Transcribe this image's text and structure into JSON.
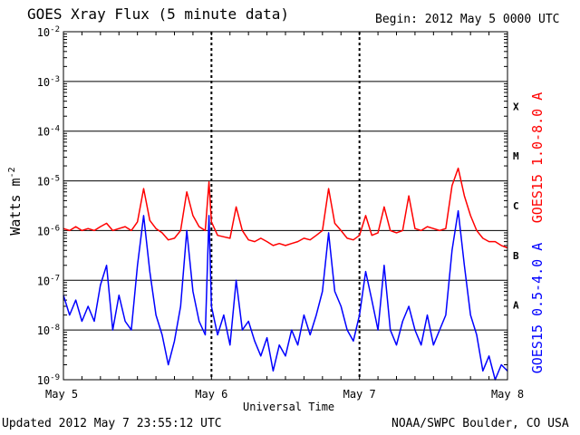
{
  "header": {
    "title": "GOES Xray Flux (5 minute data)",
    "begin": "Begin:  2012 May 5 0000 UTC"
  },
  "footer": {
    "updated": "Updated 2012 May  7 23:55:12 UTC",
    "credit": "NOAA/SWPC Boulder, CO USA"
  },
  "colors": {
    "long_channel": "#ff0000",
    "short_channel": "#0000ff",
    "grid": "#000000"
  },
  "chart_data": {
    "type": "line",
    "title": "GOES Xray Flux (5 minute data)",
    "xlabel": "Universal Time",
    "ylabel": "Watts m",
    "ylabel_sup": "-2",
    "yscale": "log",
    "ylim": [
      1e-09,
      0.01
    ],
    "xlim": [
      0,
      72
    ],
    "x_unit": "hours since 2012 May 5 0000 UTC",
    "y_ticks": [
      {
        "base": "10",
        "exp": "-2",
        "value": 0.01
      },
      {
        "base": "10",
        "exp": "-3",
        "value": 0.001
      },
      {
        "base": "10",
        "exp": "-4",
        "value": 0.0001
      },
      {
        "base": "10",
        "exp": "-5",
        "value": 1e-05
      },
      {
        "base": "10",
        "exp": "-6",
        "value": 1e-06
      },
      {
        "base": "10",
        "exp": "-7",
        "value": 1e-07
      },
      {
        "base": "10",
        "exp": "-8",
        "value": 1e-08
      },
      {
        "base": "10",
        "exp": "-9",
        "value": 1e-09
      }
    ],
    "x_ticks": [
      {
        "label": "May 5",
        "x": 0
      },
      {
        "label": "May 6",
        "x": 24
      },
      {
        "label": "May 7",
        "x": 48
      },
      {
        "label": "May 8",
        "x": 72
      }
    ],
    "flare_classes": [
      {
        "label": "X",
        "low": 0.0001,
        "high": 0.001
      },
      {
        "label": "M",
        "low": 1e-05,
        "high": 0.0001
      },
      {
        "label": "C",
        "low": 1e-06,
        "high": 1e-05
      },
      {
        "label": "B",
        "low": 1e-07,
        "high": 1e-06
      },
      {
        "label": "A",
        "low": 1e-08,
        "high": 1e-07
      }
    ],
    "grid": true,
    "series": [
      {
        "name": "GOES15 1.0-8.0 A",
        "color": "#ff0000",
        "points": [
          [
            0,
            1.1e-06
          ],
          [
            1,
            1e-06
          ],
          [
            2,
            1.2e-06
          ],
          [
            3,
            1e-06
          ],
          [
            4,
            1.1e-06
          ],
          [
            5,
            1e-06
          ],
          [
            6,
            1.2e-06
          ],
          [
            7,
            1.4e-06
          ],
          [
            8,
            1e-06
          ],
          [
            9,
            1.1e-06
          ],
          [
            10,
            1.2e-06
          ],
          [
            11,
            1e-06
          ],
          [
            12,
            1.5e-06
          ],
          [
            13,
            7e-06
          ],
          [
            14,
            1.6e-06
          ],
          [
            15,
            1.1e-06
          ],
          [
            16,
            9e-07
          ],
          [
            17,
            6.5e-07
          ],
          [
            18,
            7e-07
          ],
          [
            19,
            1e-06
          ],
          [
            20,
            6e-06
          ],
          [
            21,
            2e-06
          ],
          [
            22,
            1.2e-06
          ],
          [
            23,
            1e-06
          ],
          [
            23.6,
            9.5e-06
          ],
          [
            24,
            1.5e-06
          ],
          [
            25,
            8e-07
          ],
          [
            26,
            7.5e-07
          ],
          [
            27,
            7e-07
          ],
          [
            28,
            3e-06
          ],
          [
            29,
            1e-06
          ],
          [
            30,
            6.5e-07
          ],
          [
            31,
            6e-07
          ],
          [
            32,
            7e-07
          ],
          [
            33,
            6e-07
          ],
          [
            34,
            5e-07
          ],
          [
            35,
            5.5e-07
          ],
          [
            36,
            5e-07
          ],
          [
            37,
            5.5e-07
          ],
          [
            38,
            6e-07
          ],
          [
            39,
            7e-07
          ],
          [
            40,
            6.5e-07
          ],
          [
            41,
            8e-07
          ],
          [
            42,
            1e-06
          ],
          [
            43,
            7e-06
          ],
          [
            44,
            1.4e-06
          ],
          [
            45,
            1e-06
          ],
          [
            46,
            7e-07
          ],
          [
            47,
            6.5e-07
          ],
          [
            48,
            8e-07
          ],
          [
            49,
            2e-06
          ],
          [
            50,
            8e-07
          ],
          [
            51,
            9e-07
          ],
          [
            52,
            3e-06
          ],
          [
            53,
            1e-06
          ],
          [
            54,
            9e-07
          ],
          [
            55,
            1e-06
          ],
          [
            56,
            5e-06
          ],
          [
            57,
            1.1e-06
          ],
          [
            58,
            1e-06
          ],
          [
            59,
            1.2e-06
          ],
          [
            60,
            1.1e-06
          ],
          [
            61,
            1e-06
          ],
          [
            62,
            1.1e-06
          ],
          [
            63,
            8e-06
          ],
          [
            64,
            1.8e-05
          ],
          [
            65,
            5e-06
          ],
          [
            66,
            2e-06
          ],
          [
            67,
            1e-06
          ],
          [
            68,
            7e-07
          ],
          [
            69,
            6e-07
          ],
          [
            70,
            6e-07
          ],
          [
            71,
            5e-07
          ],
          [
            72,
            4.5e-07
          ]
        ]
      },
      {
        "name": "GOES15 0.5-4.0 A",
        "color": "#0000ff",
        "points": [
          [
            0,
            5e-08
          ],
          [
            1,
            2e-08
          ],
          [
            2,
            4e-08
          ],
          [
            3,
            1.5e-08
          ],
          [
            4,
            3e-08
          ],
          [
            5,
            1.5e-08
          ],
          [
            6,
            8e-08
          ],
          [
            7,
            2e-07
          ],
          [
            8,
            1e-08
          ],
          [
            9,
            5e-08
          ],
          [
            10,
            1.5e-08
          ],
          [
            11,
            1e-08
          ],
          [
            12,
            2e-07
          ],
          [
            13,
            2e-06
          ],
          [
            14,
            1.5e-07
          ],
          [
            15,
            2e-08
          ],
          [
            16,
            8e-09
          ],
          [
            17,
            2e-09
          ],
          [
            18,
            6e-09
          ],
          [
            19,
            3e-08
          ],
          [
            20,
            1e-06
          ],
          [
            21,
            6e-08
          ],
          [
            22,
            1.5e-08
          ],
          [
            23,
            8e-09
          ],
          [
            23.6,
            2e-06
          ],
          [
            24,
            3e-08
          ],
          [
            25,
            8e-09
          ],
          [
            26,
            2e-08
          ],
          [
            27,
            5e-09
          ],
          [
            28,
            1e-07
          ],
          [
            29,
            1e-08
          ],
          [
            30,
            1.5e-08
          ],
          [
            31,
            6e-09
          ],
          [
            32,
            3e-09
          ],
          [
            33,
            7e-09
          ],
          [
            34,
            1.5e-09
          ],
          [
            35,
            5e-09
          ],
          [
            36,
            3e-09
          ],
          [
            37,
            1e-08
          ],
          [
            38,
            5e-09
          ],
          [
            39,
            2e-08
          ],
          [
            40,
            8e-09
          ],
          [
            41,
            2e-08
          ],
          [
            42,
            6e-08
          ],
          [
            43,
            9e-07
          ],
          [
            44,
            6e-08
          ],
          [
            45,
            3e-08
          ],
          [
            46,
            1e-08
          ],
          [
            47,
            6e-09
          ],
          [
            48,
            2e-08
          ],
          [
            49,
            1.5e-07
          ],
          [
            50,
            4e-08
          ],
          [
            51,
            1e-08
          ],
          [
            52,
            2e-07
          ],
          [
            53,
            1e-08
          ],
          [
            54,
            5e-09
          ],
          [
            55,
            1.5e-08
          ],
          [
            56,
            3e-08
          ],
          [
            57,
            1e-08
          ],
          [
            58,
            5e-09
          ],
          [
            59,
            2e-08
          ],
          [
            60,
            5e-09
          ],
          [
            61,
            1e-08
          ],
          [
            62,
            2e-08
          ],
          [
            63,
            4e-07
          ],
          [
            64,
            2.5e-06
          ],
          [
            65,
            2e-07
          ],
          [
            66,
            2e-08
          ],
          [
            67,
            8e-09
          ],
          [
            68,
            1.5e-09
          ],
          [
            69,
            3e-09
          ],
          [
            70,
            1e-09
          ],
          [
            71,
            2e-09
          ],
          [
            72,
            1.5e-09
          ]
        ]
      }
    ]
  }
}
